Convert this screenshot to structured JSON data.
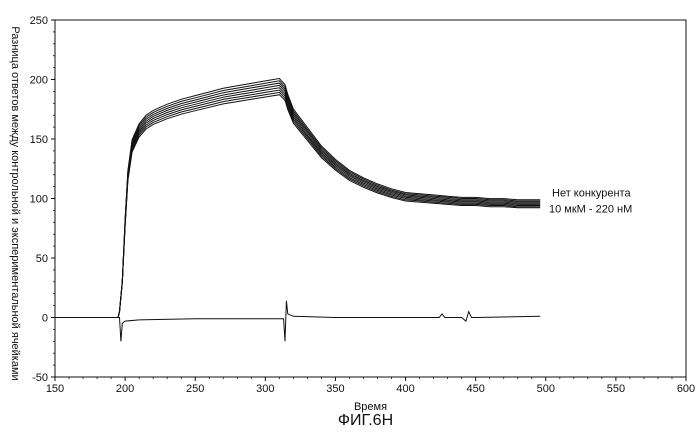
{
  "chart_data": {
    "type": "line",
    "title": "",
    "xlabel": "Время",
    "ylabel": "Разница ответов между контрольной и экспериментальной ячейками",
    "xlim": [
      150,
      600
    ],
    "ylim": [
      -50,
      250
    ],
    "xticks": [
      150,
      200,
      250,
      300,
      350,
      400,
      450,
      500,
      550,
      600
    ],
    "yticks": [
      -50,
      0,
      50,
      100,
      150,
      200,
      250
    ],
    "grid": false,
    "legend": {
      "placement": "right",
      "entries": [
        "Нет конкурента",
        "10 мкМ - 220 нМ"
      ]
    },
    "caption": "ФИГ.6Н",
    "series": [
      {
        "name": "",
        "x": [
          150,
          195,
          196,
          198,
          200,
          202,
          205,
          210,
          215,
          220,
          230,
          240,
          250,
          260,
          270,
          280,
          290,
          300,
          310,
          314,
          316,
          320,
          330,
          340,
          350,
          360,
          370,
          380,
          390,
          400,
          410,
          420,
          430,
          440,
          450,
          460,
          470,
          480,
          490,
          496
        ],
        "y": [
          0,
          0,
          5,
          30,
          80,
          120,
          145,
          158,
          165,
          169,
          174,
          178,
          181,
          184,
          187,
          189,
          191,
          193,
          195,
          190,
          182,
          170,
          155,
          140,
          129,
          120,
          114,
          109,
          105,
          102,
          101,
          100,
          99,
          98,
          98,
          97,
          97,
          96,
          96,
          96
        ],
        "offsets": [
          -4,
          -3,
          -2,
          -1,
          0,
          1,
          2,
          3
        ]
      },
      {
        "name": "",
        "x": [
          150,
          194,
          196,
          197,
          198,
          200,
          210,
          250,
          300,
          313,
          314,
          315,
          316,
          320,
          350,
          400,
          420,
          424,
          426,
          428,
          440,
          443,
          445,
          447,
          450,
          496
        ],
        "y": [
          0,
          0,
          0,
          -20,
          -5,
          -3,
          -2,
          -1,
          -1,
          -1,
          -20,
          14,
          3,
          1,
          0,
          0,
          0,
          0,
          3,
          0,
          0,
          -3,
          5,
          0,
          0,
          1
        ]
      }
    ]
  }
}
